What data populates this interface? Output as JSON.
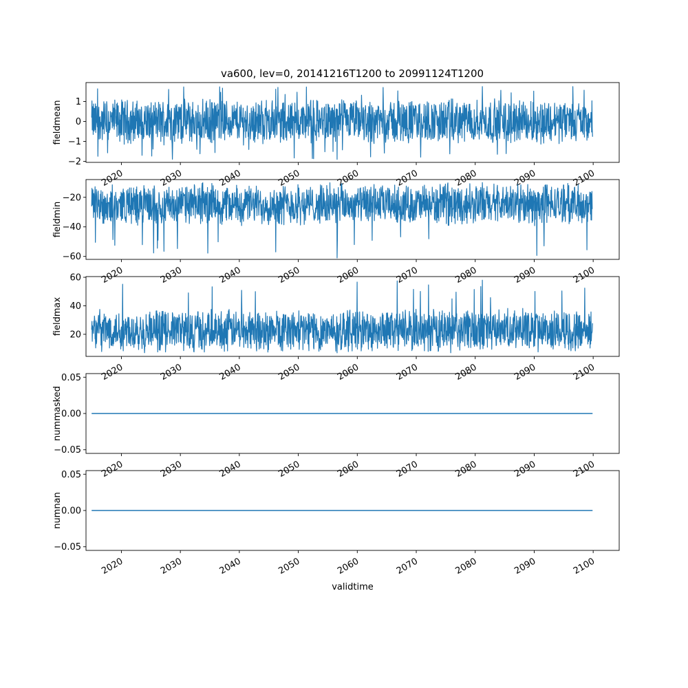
{
  "figure_title": "va600, lev=0, 20141216T1200 to 20991124T1200",
  "colors": {
    "series": "#1f77b4",
    "axes": "#000000",
    "background": "#ffffff"
  },
  "chart_data": [
    {
      "type": "line",
      "ylabel": "fieldmean",
      "xlim": [
        "2014-01-01",
        "2104-06-01"
      ],
      "ylim": [
        -2.05,
        1.95
      ],
      "yticks": [
        -2,
        -1,
        0,
        1
      ],
      "ytick_labels": [
        "−2",
        "−1",
        "0",
        "1"
      ],
      "xticks": [
        "2020",
        "2030",
        "2040",
        "2050",
        "2060",
        "2070",
        "2080",
        "2090",
        "2100"
      ],
      "series": [
        {
          "x_start": "2014-12-16",
          "x_end": "2099-11-24",
          "center": 0.0,
          "typical_min": -1.0,
          "typical_max": 1.0,
          "lowest": -1.9,
          "highest": 1.75
        }
      ]
    },
    {
      "type": "line",
      "ylabel": "fieldmin",
      "xlim": [
        "2014-01-01",
        "2104-06-01"
      ],
      "ylim": [
        -62,
        -8
      ],
      "yticks": [
        -60,
        -40,
        -20
      ],
      "ytick_labels": [
        "−60",
        "−40",
        "−20"
      ],
      "xticks": [
        "2020",
        "2030",
        "2040",
        "2050",
        "2060",
        "2070",
        "2080",
        "2090",
        "2100"
      ],
      "series": [
        {
          "x_start": "2014-12-16",
          "x_end": "2099-11-24",
          "center": -25.0,
          "typical_min": -37.0,
          "typical_max": -13.0,
          "lowest": -61.0,
          "highest": -10.0
        }
      ]
    },
    {
      "type": "line",
      "ylabel": "fieldmax",
      "xlim": [
        "2014-01-01",
        "2104-06-01"
      ],
      "ylim": [
        4.5,
        60.5
      ],
      "yticks": [
        20,
        40,
        60
      ],
      "ytick_labels": [
        "20",
        "40",
        "60"
      ],
      "xticks": [
        "2020",
        "2030",
        "2040",
        "2050",
        "2060",
        "2070",
        "2080",
        "2090",
        "2100"
      ],
      "series": [
        {
          "x_start": "2014-12-16",
          "x_end": "2099-11-24",
          "center": 23.0,
          "typical_min": 10.0,
          "typical_max": 36.0,
          "lowest": 7.0,
          "highest": 58.0
        }
      ]
    },
    {
      "type": "line",
      "ylabel": "nummasked",
      "xlim": [
        "2014-01-01",
        "2104-06-01"
      ],
      "ylim": [
        -0.055,
        0.055
      ],
      "yticks": [
        -0.05,
        0,
        0.05
      ],
      "ytick_labels": [
        "−0.05",
        "0.00",
        "0.05"
      ],
      "xticks": [
        "2020",
        "2030",
        "2040",
        "2050",
        "2060",
        "2070",
        "2080",
        "2090",
        "2100"
      ],
      "series": [
        {
          "x": [
            "2014-12-16",
            "2099-11-24"
          ],
          "y": [
            0,
            0
          ]
        }
      ]
    },
    {
      "type": "line",
      "ylabel": "numnan",
      "xlabel": "validtime",
      "xlim": [
        "2014-01-01",
        "2104-06-01"
      ],
      "ylim": [
        -0.055,
        0.055
      ],
      "yticks": [
        -0.05,
        0,
        0.05
      ],
      "ytick_labels": [
        "−0.05",
        "0.00",
        "0.05"
      ],
      "xticks": [
        "2020",
        "2030",
        "2040",
        "2050",
        "2060",
        "2070",
        "2080",
        "2090",
        "2100"
      ],
      "series": [
        {
          "x": [
            "2014-12-16",
            "2099-11-24"
          ],
          "y": [
            0,
            0
          ]
        }
      ]
    }
  ]
}
